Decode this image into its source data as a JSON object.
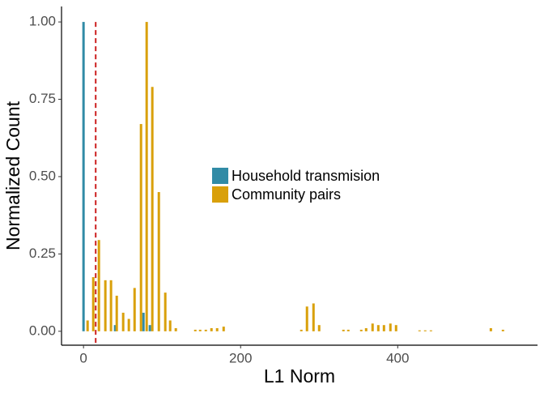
{
  "chart_data": {
    "type": "bar",
    "x_label": "L1 Norm",
    "y_label": "Normalized Count",
    "xlim": [
      -28,
      578
    ],
    "ylim": [
      -0.045,
      1.05
    ],
    "xticks": [
      0,
      200,
      400
    ],
    "yticks": [
      {
        "value": 0,
        "label": "0.00"
      },
      {
        "value": 0.25,
        "label": "0.25"
      },
      {
        "value": 0.5,
        "label": "0.50"
      },
      {
        "value": 0.75,
        "label": "0.75"
      },
      {
        "value": 1,
        "label": "1.00"
      }
    ],
    "vline": 15.5,
    "vline_color": "#cc1f1f",
    "series": [
      {
        "name": "Household transmision",
        "color": "#318ba6",
        "x": [
          0,
          40.2,
          76.3,
          84.5
        ],
        "values": [
          1.0,
          0.02,
          0.06,
          0.02
        ]
      },
      {
        "name": "Community pairs",
        "color": "#d9a00a",
        "x": [
          5.2,
          12.4,
          19.6,
          27.8,
          35,
          42.3,
          50.5,
          57.7,
          65,
          73.2,
          80.4,
          87.6,
          95.9,
          104.1,
          110.3,
          117.5,
          142.3,
          148.5,
          155.7,
          162.9,
          170.1,
          178.4,
          277.3,
          284.5,
          292.8,
          300,
          330.9,
          337.1,
          353.6,
          359.8,
          368,
          375.3,
          382.5,
          390.7,
          397.9,
          427.8,
          435,
          442.3,
          518.6,
          534
        ],
        "values": [
          0.035,
          0.175,
          0.295,
          0.165,
          0.165,
          0.115,
          0.06,
          0.04,
          0.14,
          0.67,
          1.0,
          0.79,
          0.45,
          0.125,
          0.035,
          0.01,
          0.005,
          0.005,
          0.005,
          0.01,
          0.01,
          0.015,
          0.005,
          0.08,
          0.09,
          0.02,
          0.005,
          0.005,
          0.005,
          0.01,
          0.025,
          0.02,
          0.02,
          0.025,
          0.02,
          0.003,
          0.003,
          0.003,
          0.01,
          0.005
        ]
      }
    ]
  }
}
